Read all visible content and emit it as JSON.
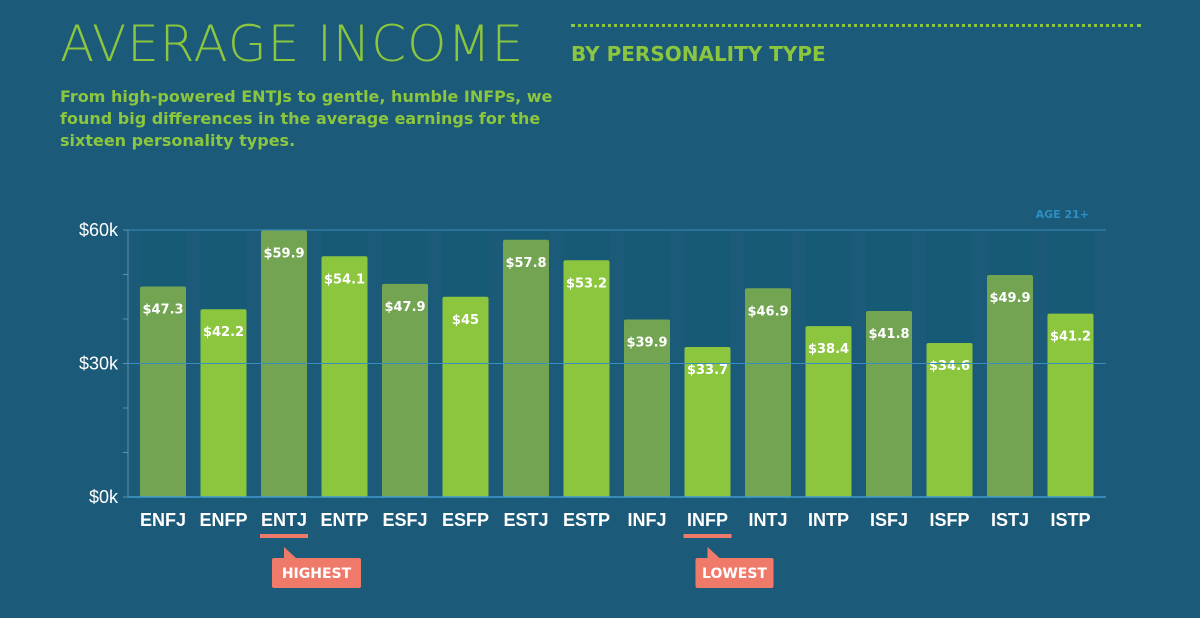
{
  "header": {
    "title": "AVERAGE INCOME",
    "title_suffix": "BY PERSONALITY TYPE",
    "subtitle": "From high-powered ENTJs to gentle, humble INFPs, we found big differences in the average earnings for the sixteen personality types."
  },
  "colors": {
    "background": "#1b5a78",
    "bar_dark": "#72a452",
    "bar_light": "#8cc63f",
    "bar_track": "#175a76",
    "accent_text": "#8cc63f",
    "callout": "#f07a6a",
    "note": "#2e8fc4"
  },
  "chart_data": {
    "type": "bar",
    "categories": [
      "ENFJ",
      "ENFP",
      "ENTJ",
      "ENTP",
      "ESFJ",
      "ESFP",
      "ESTJ",
      "ESTP",
      "INFJ",
      "INFP",
      "INTJ",
      "INTP",
      "ISFJ",
      "ISFP",
      "ISTJ",
      "ISTP"
    ],
    "values": [
      47.3,
      42.2,
      59.9,
      54.1,
      47.9,
      45,
      57.8,
      53.2,
      39.9,
      33.7,
      46.9,
      38.4,
      41.8,
      34.6,
      49.9,
      41.2
    ],
    "value_labels": [
      "$47.3",
      "$42.2",
      "$59.9",
      "$54.1",
      "$47.9",
      "$45",
      "$57.8",
      "$53.2",
      "$39.9",
      "$33.7",
      "$46.9",
      "$38.4",
      "$41.8",
      "$34.6",
      "$49.9",
      "$41.2"
    ],
    "ylim": [
      0,
      60
    ],
    "yticks": [
      0,
      30,
      60
    ],
    "ytick_labels": [
      "$0k",
      "$30k",
      "$60k"
    ],
    "note": "AGE 21+",
    "grid": true,
    "highlights": [
      {
        "category": "ENTJ",
        "label": "HIGHEST"
      },
      {
        "category": "INFP",
        "label": "LOWEST"
      }
    ]
  }
}
